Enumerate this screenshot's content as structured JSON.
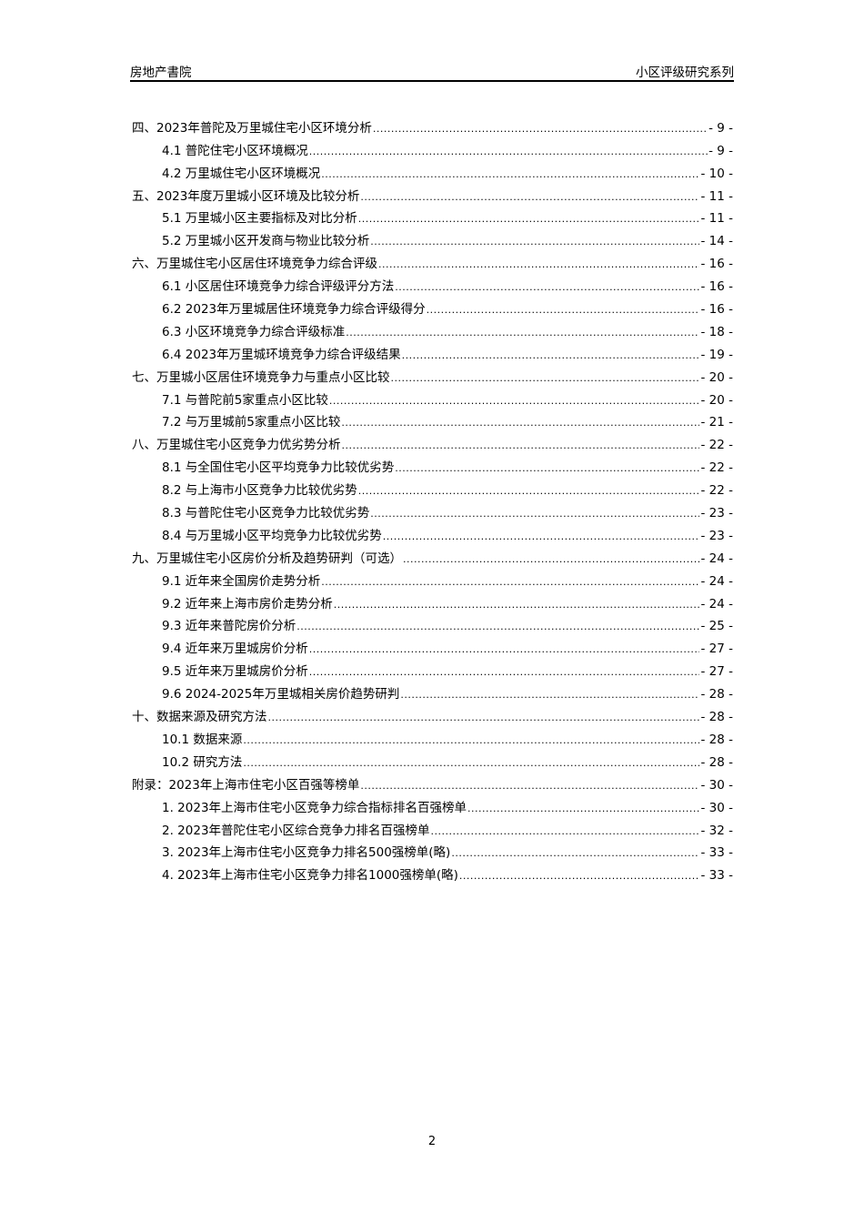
{
  "header": {
    "left": "房地产書院",
    "right": "小区评级研究系列"
  },
  "toc": [
    {
      "level": 1,
      "title": "四、2023年普陀及万里城住宅小区环境分析",
      "page": "- 9 -"
    },
    {
      "level": 2,
      "title": "4.1 普陀住宅小区环境概况",
      "page": "- 9 -"
    },
    {
      "level": 2,
      "title": "4.2 万里城住宅小区环境概况",
      "page": "- 10 -"
    },
    {
      "level": 1,
      "title": "五、2023年度万里城小区环境及比较分析",
      "page": "- 11 -"
    },
    {
      "level": 2,
      "title": "5.1 万里城小区主要指标及对比分析",
      "page": "- 11 -"
    },
    {
      "level": 2,
      "title": "5.2 万里城小区开发商与物业比较分析",
      "page": "- 14 -"
    },
    {
      "level": 1,
      "title": "六、万里城住宅小区居住环境竞争力综合评级",
      "page": "- 16 -"
    },
    {
      "level": 2,
      "title": "6.1 小区居住环境竞争力综合评级评分方法",
      "page": "- 16 -"
    },
    {
      "level": 2,
      "title": "6.2 2023年万里城居住环境竞争力综合评级得分",
      "page": "- 16 -"
    },
    {
      "level": 2,
      "title": "6.3 小区环境竞争力综合评级标准",
      "page": "- 18 -"
    },
    {
      "level": 2,
      "title": "6.4 2023年万里城环境竞争力综合评级结果",
      "page": "- 19 -"
    },
    {
      "level": 1,
      "title": "七、万里城小区居住环境竞争力与重点小区比较",
      "page": "- 20 -"
    },
    {
      "level": 2,
      "title": "7.1 与普陀前5家重点小区比较",
      "page": "- 20 -"
    },
    {
      "level": 2,
      "title": "7.2 与万里城前5家重点小区比较",
      "page": "- 21 -"
    },
    {
      "level": 1,
      "title": "八、万里城住宅小区竞争力优劣势分析",
      "page": "- 22 -"
    },
    {
      "level": 2,
      "title": "8.1 与全国住宅小区平均竞争力比较优劣势",
      "page": "- 22 -"
    },
    {
      "level": 2,
      "title": "8.2 与上海市小区竞争力比较优劣势",
      "page": "- 22 -"
    },
    {
      "level": 2,
      "title": "8.3 与普陀住宅小区竞争力比较优劣势",
      "page": "- 23 -"
    },
    {
      "level": 2,
      "title": "8.4 与万里城小区平均竞争力比较优劣势",
      "page": "- 23 -"
    },
    {
      "level": 1,
      "title": "九、万里城住宅小区房价分析及趋势研判（可选）",
      "page": "- 24 -"
    },
    {
      "level": 2,
      "title": "9.1 近年来全国房价走势分析",
      "page": "- 24 -"
    },
    {
      "level": 2,
      "title": "9.2 近年来上海市房价走势分析",
      "page": "- 24 -"
    },
    {
      "level": 2,
      "title": "9.3 近年来普陀房价分析",
      "page": "- 25 -"
    },
    {
      "level": 2,
      "title": "9.4 近年来万里城房价分析",
      "page": "- 27 -"
    },
    {
      "level": 2,
      "title": "9.5 近年来万里城房价分析",
      "page": "- 27 -"
    },
    {
      "level": 2,
      "title": "9.6 2024-2025年万里城相关房价趋势研判",
      "page": "- 28 -"
    },
    {
      "level": 1,
      "title": "十、数据来源及研究方法",
      "page": "- 28 -"
    },
    {
      "level": 2,
      "title": "10.1 数据来源",
      "page": "- 28 -"
    },
    {
      "level": 2,
      "title": "10.2 研究方法",
      "page": "- 28 -"
    },
    {
      "level": 1,
      "title": "附录：2023年上海市住宅小区百强等榜单",
      "page": "- 30 -"
    },
    {
      "level": 2,
      "title": "1. 2023年上海市住宅小区竞争力综合指标排名百强榜单",
      "page": "- 30 -"
    },
    {
      "level": 2,
      "title": "2. 2023年普陀住宅小区综合竞争力排名百强榜单",
      "page": "- 32 -"
    },
    {
      "level": 2,
      "title": "3. 2023年上海市住宅小区竞争力排名500强榜单(略)",
      "page": "- 33 -"
    },
    {
      "level": 2,
      "title": "4. 2023年上海市住宅小区竞争力排名1000强榜单(略)",
      "page": "- 33 -"
    }
  ],
  "footer": {
    "page_number": "2"
  }
}
